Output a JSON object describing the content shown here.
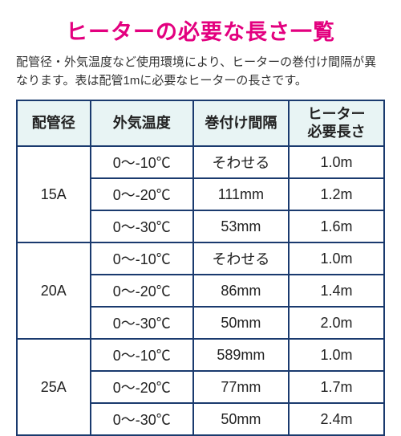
{
  "title": "ヒーターの必要な長さ一覧",
  "description": "配管径・外気温度など使用環境により、ヒーターの巻付け間隔が異なります。表は配管1mに必要なヒーターの長さです。",
  "columns": [
    "配管径",
    "外気温度",
    "巻付け間隔",
    "ヒーター\n必要長さ"
  ],
  "groups": [
    {
      "pipe": "15A",
      "rows": [
        {
          "temp": "0〜-10℃",
          "interval": "そわせる",
          "length": "1.0m"
        },
        {
          "temp": "0〜-20℃",
          "interval": "111mm",
          "length": "1.2m"
        },
        {
          "temp": "0〜-30℃",
          "interval": "53mm",
          "length": "1.6m"
        }
      ]
    },
    {
      "pipe": "20A",
      "rows": [
        {
          "temp": "0〜-10℃",
          "interval": "そわせる",
          "length": "1.0m"
        },
        {
          "temp": "0〜-20℃",
          "interval": "86mm",
          "length": "1.4m"
        },
        {
          "temp": "0〜-30℃",
          "interval": "50mm",
          "length": "2.0m"
        }
      ]
    },
    {
      "pipe": "25A",
      "rows": [
        {
          "temp": "0〜-10℃",
          "interval": "589mm",
          "length": "1.0m"
        },
        {
          "temp": "0〜-20℃",
          "interval": "77mm",
          "length": "1.7m"
        },
        {
          "temp": "0〜-30℃",
          "interval": "50mm",
          "length": "2.4m"
        }
      ]
    }
  ],
  "colors": {
    "title": "#e3007f",
    "border": "#1a3a6e",
    "header_bg": "#e8f4f4",
    "text": "#222222",
    "background": "#ffffff"
  }
}
